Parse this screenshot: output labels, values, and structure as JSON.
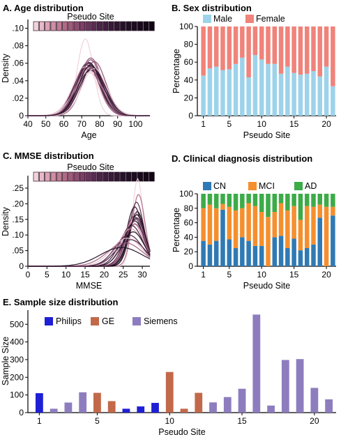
{
  "colors": {
    "male": "#9dd3ea",
    "female": "#f0837a",
    "cn": "#2f7ab4",
    "mci": "#f58f2e",
    "ad": "#3cab48",
    "philips": "#1f1fd6",
    "ge": "#c2694a",
    "siemens": "#8e7dbe",
    "site_palette": [
      "#f1d2da",
      "#e7b9c6",
      "#dca3b4",
      "#cf8ea2",
      "#c07b92",
      "#b06a85",
      "#9f5b7a",
      "#8c4d70",
      "#7a4066",
      "#69355c",
      "#5a2c53",
      "#4d2549",
      "#411f40",
      "#371b38",
      "#2e1730",
      "#26132a",
      "#201024",
      "#1b0d1f",
      "#160a1a",
      "#120816",
      "#0f0613"
    ]
  },
  "chart_data": [
    {
      "panel": "A",
      "type": "line",
      "title": "A. Age distribution",
      "xlabel": "Age",
      "ylabel": "Density",
      "xticks": [
        "40",
        "50",
        "60",
        "70",
        "80",
        "90",
        "100"
      ],
      "yticks": [
        "0",
        ".02",
        ".04",
        ".06",
        ".08",
        ".10"
      ],
      "xlim": [
        40,
        108
      ],
      "ylim": [
        0,
        0.11
      ],
      "legend_title": "Pseudo Site",
      "n_sites": 21,
      "series": [
        {
          "mean": 72,
          "sd": 4.5,
          "peak": 0.088
        },
        {
          "mean": 75,
          "sd": 6.5,
          "peak": 0.066
        },
        {
          "mean": 74,
          "sd": 7.0,
          "peak": 0.06
        },
        {
          "mean": 76,
          "sd": 7.0,
          "peak": 0.058
        },
        {
          "mean": 73,
          "sd": 7.5,
          "peak": 0.055
        },
        {
          "mean": 75,
          "sd": 7.0,
          "peak": 0.057
        },
        {
          "mean": 74,
          "sd": 7.5,
          "peak": 0.053
        },
        {
          "mean": 77,
          "sd": 6.5,
          "peak": 0.062
        },
        {
          "mean": 73,
          "sd": 7.0,
          "peak": 0.058
        },
        {
          "mean": 75,
          "sd": 8.0,
          "peak": 0.05
        },
        {
          "mean": 76,
          "sd": 7.5,
          "peak": 0.053
        },
        {
          "mean": 74,
          "sd": 6.5,
          "peak": 0.061
        },
        {
          "mean": 72,
          "sd": 7.0,
          "peak": 0.056
        },
        {
          "mean": 75,
          "sd": 6.0,
          "peak": 0.064
        },
        {
          "mean": 76,
          "sd": 7.0,
          "peak": 0.055
        },
        {
          "mean": 74,
          "sd": 8.0,
          "peak": 0.049
        },
        {
          "mean": 73,
          "sd": 6.5,
          "peak": 0.06
        },
        {
          "mean": 75,
          "sd": 7.5,
          "peak": 0.052
        },
        {
          "mean": 77,
          "sd": 7.0,
          "peak": 0.054
        },
        {
          "mean": 74,
          "sd": 7.0,
          "peak": 0.056
        },
        {
          "mean": 75,
          "sd": 6.8,
          "peak": 0.058
        }
      ]
    },
    {
      "panel": "B",
      "type": "bar",
      "title": "B. Sex distribution",
      "xlabel": "Pseudo Site",
      "ylabel": "Percentage",
      "xticks": [
        "1",
        "5",
        "10",
        "15",
        "20"
      ],
      "yticks": [
        "0",
        "20",
        "40",
        "60",
        "80",
        "100"
      ],
      "ylim": [
        0,
        100
      ],
      "legend": [
        "Male",
        "Female"
      ],
      "categories": [
        1,
        2,
        3,
        4,
        5,
        6,
        7,
        8,
        9,
        10,
        11,
        12,
        13,
        14,
        15,
        16,
        17,
        18,
        19,
        20,
        21
      ],
      "series": [
        {
          "name": "Male",
          "values": [
            45,
            53,
            55,
            51,
            52,
            58,
            65,
            43,
            68,
            63,
            58,
            58,
            47,
            55,
            48,
            46,
            47,
            50,
            44,
            55,
            33
          ]
        },
        {
          "name": "Female",
          "values": [
            55,
            47,
            45,
            49,
            48,
            42,
            35,
            57,
            32,
            37,
            42,
            42,
            53,
            45,
            52,
            54,
            53,
            50,
            56,
            45,
            67
          ]
        }
      ]
    },
    {
      "panel": "C",
      "type": "line",
      "title": "C. MMSE distribution",
      "xlabel": "MMSE",
      "ylabel": "Density",
      "xticks": [
        "0",
        "5",
        "10",
        "15",
        "20",
        "25",
        "30"
      ],
      "yticks": [
        "0",
        ".05",
        ".10",
        ".15",
        ".20",
        ".25"
      ],
      "xlim": [
        0,
        32
      ],
      "ylim": [
        0,
        0.29
      ],
      "legend_title": "Pseudo Site",
      "n_sites": 21,
      "series": [
        {
          "mean": 28.8,
          "sd": 1.4,
          "peak": 0.28
        },
        {
          "mean": 29.0,
          "sd": 1.7,
          "peak": 0.23
        },
        {
          "mean": 28.5,
          "sd": 1.9,
          "peak": 0.205
        },
        {
          "mean": 28.0,
          "sd": 2.1,
          "peak": 0.19
        },
        {
          "mean": 28.7,
          "sd": 2.0,
          "peak": 0.175
        },
        {
          "mean": 28.2,
          "sd": 2.2,
          "peak": 0.17
        },
        {
          "mean": 27.8,
          "sd": 2.4,
          "peak": 0.16
        },
        {
          "mean": 28.5,
          "sd": 2.3,
          "peak": 0.155
        },
        {
          "mean": 28.0,
          "sd": 2.6,
          "peak": 0.145
        },
        {
          "mean": 27.5,
          "sd": 2.8,
          "peak": 0.14
        },
        {
          "mean": 28.3,
          "sd": 2.5,
          "peak": 0.15
        },
        {
          "mean": 27.2,
          "sd": 3.0,
          "peak": 0.13
        },
        {
          "mean": 28.6,
          "sd": 2.2,
          "peak": 0.165
        },
        {
          "mean": 27.0,
          "sd": 3.3,
          "peak": 0.12
        },
        {
          "mean": 28.1,
          "sd": 2.7,
          "peak": 0.135
        },
        {
          "mean": 26.5,
          "sd": 3.6,
          "peak": 0.1
        },
        {
          "mean": 27.6,
          "sd": 3.0,
          "peak": 0.11
        },
        {
          "mean": 26.0,
          "sd": 4.0,
          "peak": 0.09
        },
        {
          "mean": 25.5,
          "sd": 4.6,
          "peak": 0.075
        },
        {
          "mean": 27.0,
          "sd": 3.8,
          "peak": 0.085
        },
        {
          "mean": 24.5,
          "sd": 5.5,
          "peak": 0.06
        }
      ]
    },
    {
      "panel": "D",
      "type": "bar",
      "title": "D. Clinical diagnosis distribution",
      "xlabel": "Pseudo Site",
      "ylabel": "Percentage",
      "xticks": [
        "1",
        "5",
        "10",
        "15",
        "20"
      ],
      "yticks": [
        "0",
        "20",
        "40",
        "60",
        "80",
        "100"
      ],
      "ylim": [
        0,
        100
      ],
      "legend": [
        "CN",
        "MCI",
        "AD"
      ],
      "categories": [
        1,
        2,
        3,
        4,
        5,
        6,
        7,
        8,
        9,
        10,
        11,
        12,
        13,
        14,
        15,
        16,
        17,
        18,
        19,
        20,
        21
      ],
      "series": [
        {
          "name": "CN",
          "values": [
            35,
            30,
            35,
            78,
            37,
            25,
            40,
            35,
            28,
            28,
            0,
            40,
            42,
            25,
            38,
            22,
            25,
            30,
            67,
            0,
            70
          ]
        },
        {
          "name": "MCI",
          "values": [
            45,
            55,
            45,
            8,
            45,
            52,
            40,
            52,
            55,
            47,
            68,
            35,
            45,
            52,
            45,
            42,
            58,
            52,
            18,
            82,
            12
          ]
        },
        {
          "name": "AD",
          "values": [
            20,
            15,
            20,
            14,
            18,
            23,
            20,
            13,
            17,
            25,
            32,
            25,
            13,
            23,
            17,
            36,
            17,
            18,
            15,
            18,
            18
          ]
        }
      ]
    },
    {
      "panel": "E",
      "type": "bar",
      "title": "E. Sample size distribution",
      "xlabel": "Pseudo Site",
      "ylabel": "Sample Size",
      "xticks": [
        "1",
        "5",
        "10",
        "15",
        "20"
      ],
      "yticks": [
        "0",
        "100",
        "200",
        "300",
        "400",
        "500"
      ],
      "ylim": [
        0,
        580
      ],
      "legend": [
        "Philips",
        "GE",
        "Siemens"
      ],
      "categories": [
        1,
        2,
        3,
        4,
        5,
        6,
        7,
        8,
        9,
        10,
        11,
        12,
        13,
        14,
        15,
        16,
        17,
        18,
        19,
        20,
        21
      ],
      "values": [
        110,
        22,
        57,
        115,
        112,
        65,
        22,
        35,
        55,
        230,
        22,
        112,
        58,
        88,
        135,
        555,
        40,
        298,
        303,
        140,
        75
      ],
      "vendor": [
        "Philips",
        "Siemens",
        "Siemens",
        "Siemens",
        "GE",
        "GE",
        "Philips",
        "Philips",
        "Philips",
        "GE",
        "GE",
        "GE",
        "Siemens",
        "Siemens",
        "Siemens",
        "Siemens",
        "Siemens",
        "Siemens",
        "Siemens",
        "Siemens",
        "Siemens"
      ]
    }
  ]
}
